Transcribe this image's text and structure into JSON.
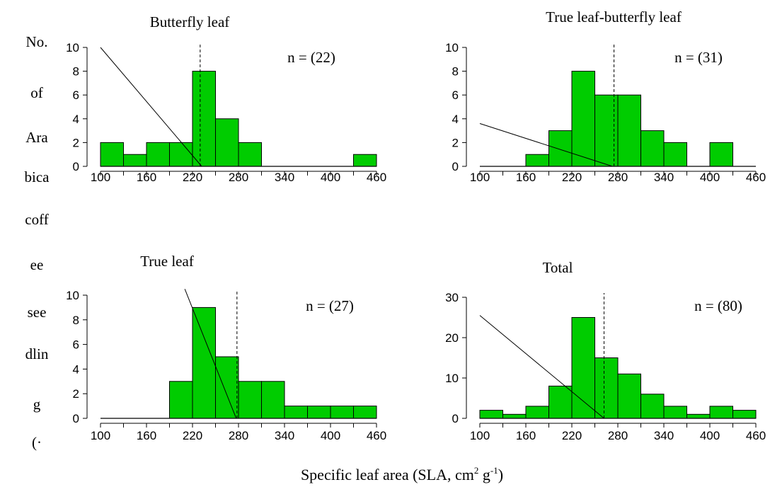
{
  "figure": {
    "xlabel_main": "Specific leaf area (SLA, cm",
    "xlabel_sup1": "2",
    "xlabel_mid": " g",
    "xlabel_sup2": "-1",
    "xlabel_end": ")",
    "ylabel_lines": [
      "No.",
      "of",
      "Ara",
      "bica",
      "coff",
      "ee",
      "see",
      "dlin",
      "g",
      "(·"
    ]
  },
  "colors": {
    "bar_fill": "#00cc00",
    "bar_stroke": "#000000",
    "axis": "#000000"
  },
  "chart_data": [
    {
      "type": "bar",
      "title": "Butterfly leaf",
      "n_label": "n = (22)",
      "bin_edges": [
        100,
        130,
        160,
        190,
        220,
        250,
        280,
        310,
        340,
        370,
        400,
        430,
        460
      ],
      "values": [
        2,
        1,
        2,
        2,
        8,
        4,
        2,
        0,
        0,
        0,
        0,
        1
      ],
      "ylim": [
        0,
        10
      ],
      "yticks": [
        0,
        2,
        4,
        6,
        8,
        10
      ],
      "xticks": [
        100,
        160,
        220,
        280,
        340,
        400,
        460
      ],
      "mean": 230,
      "line": [
        [
          100,
          10
        ],
        [
          232,
          0
        ]
      ]
    },
    {
      "type": "bar",
      "title": "True leaf-butterfly leaf",
      "n_label": "n = (31)",
      "bin_edges": [
        100,
        130,
        160,
        190,
        220,
        250,
        280,
        310,
        340,
        370,
        400,
        430,
        460
      ],
      "values": [
        0,
        0,
        1,
        3,
        8,
        6,
        6,
        3,
        2,
        0,
        2,
        0
      ],
      "ylim": [
        0,
        10
      ],
      "yticks": [
        0,
        2,
        4,
        6,
        8,
        10
      ],
      "xticks": [
        100,
        160,
        220,
        280,
        340,
        400,
        460
      ],
      "mean": 275,
      "line": [
        [
          100,
          3.6
        ],
        [
          273,
          0
        ]
      ]
    },
    {
      "type": "bar",
      "title": "True leaf",
      "n_label": "n = (27)",
      "bin_edges": [
        100,
        130,
        160,
        190,
        220,
        250,
        280,
        310,
        340,
        370,
        400,
        430,
        460
      ],
      "values": [
        0,
        0,
        0,
        3,
        9,
        5,
        3,
        3,
        1,
        1,
        1,
        1
      ],
      "ylim": [
        0,
        10
      ],
      "yticks": [
        0,
        2,
        4,
        6,
        8,
        10
      ],
      "xticks": [
        100,
        160,
        220,
        280,
        340,
        400,
        460
      ],
      "mean": 278,
      "line": [
        [
          210,
          10.5
        ],
        [
          277,
          0
        ]
      ]
    },
    {
      "type": "bar",
      "title": "Total",
      "n_label": "n = (80)",
      "bin_edges": [
        100,
        130,
        160,
        190,
        220,
        250,
        280,
        310,
        340,
        370,
        400,
        430,
        460
      ],
      "values": [
        2,
        1,
        3,
        8,
        25,
        15,
        11,
        6,
        3,
        1,
        3,
        2
      ],
      "ylim": [
        0,
        30
      ],
      "yticks": [
        0,
        10,
        20,
        30
      ],
      "xticks": [
        100,
        160,
        220,
        280,
        340,
        400,
        460
      ],
      "mean": 262,
      "line": [
        [
          100,
          25.5
        ],
        [
          262,
          0
        ]
      ]
    }
  ]
}
